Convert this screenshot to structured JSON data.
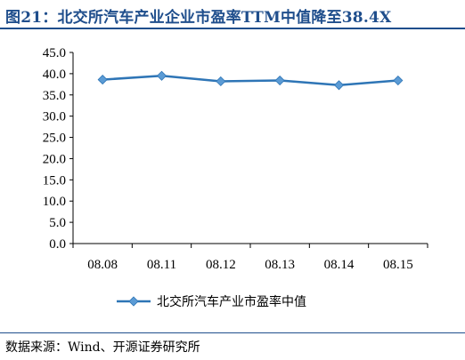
{
  "title": "图21：北交所汽车产业企业市盈率TTM中值降至38.4X",
  "source": "数据来源：Wind、开源证券研究所",
  "colors": {
    "title": "#1f4e8c",
    "series": "#2e75b6",
    "marker": "#5b9bd5"
  },
  "chart_data": {
    "type": "line",
    "categories": [
      "08.08",
      "08.11",
      "08.12",
      "08.13",
      "08.14",
      "08.15"
    ],
    "series": [
      {
        "name": "北交所汽车产业市盈率中值",
        "values": [
          38.6,
          39.5,
          38.2,
          38.4,
          37.3,
          38.4
        ]
      }
    ],
    "ylim": [
      0,
      45
    ],
    "yticks": [
      "0.0",
      "5.0",
      "10.0",
      "15.0",
      "20.0",
      "25.0",
      "30.0",
      "35.0",
      "40.0",
      "45.0"
    ],
    "grid": false,
    "legend": "bottom"
  }
}
